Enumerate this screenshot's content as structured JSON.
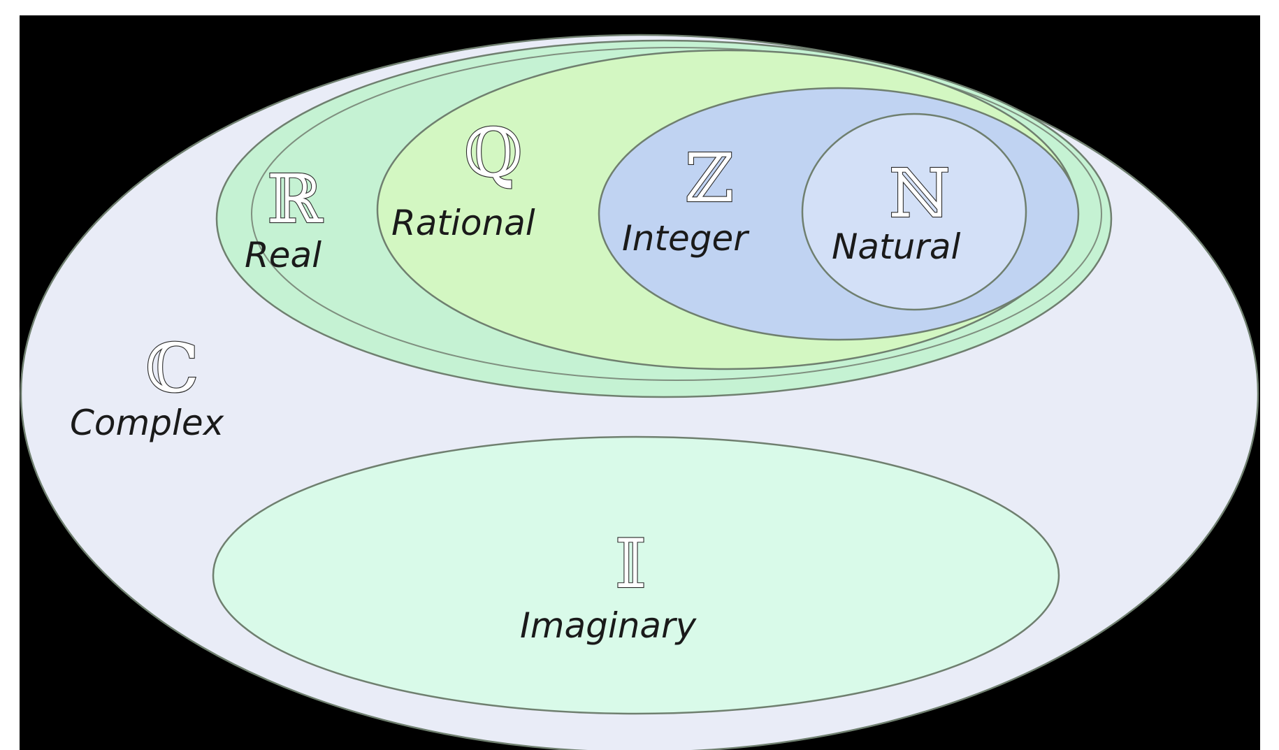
{
  "sets": {
    "complex": {
      "symbol": "ℂ",
      "name": "Complex",
      "fill": "#e9ecf7"
    },
    "real": {
      "symbol": "ℝ",
      "name": "Real",
      "fill": "#c5f2d3"
    },
    "rational": {
      "symbol": "ℚ",
      "name": "Rational",
      "fill": "#d3f7c2"
    },
    "integer": {
      "symbol": "ℤ",
      "name": "Integer",
      "fill": "#c0d3f2"
    },
    "natural": {
      "symbol": "ℕ",
      "name": "Natural",
      "fill": "#d3e0f7"
    },
    "imaginary": {
      "symbol": "𝕀",
      "name": "Imaginary",
      "fill": "#d9fae9"
    }
  },
  "colors": {
    "background": "#000000"
  }
}
